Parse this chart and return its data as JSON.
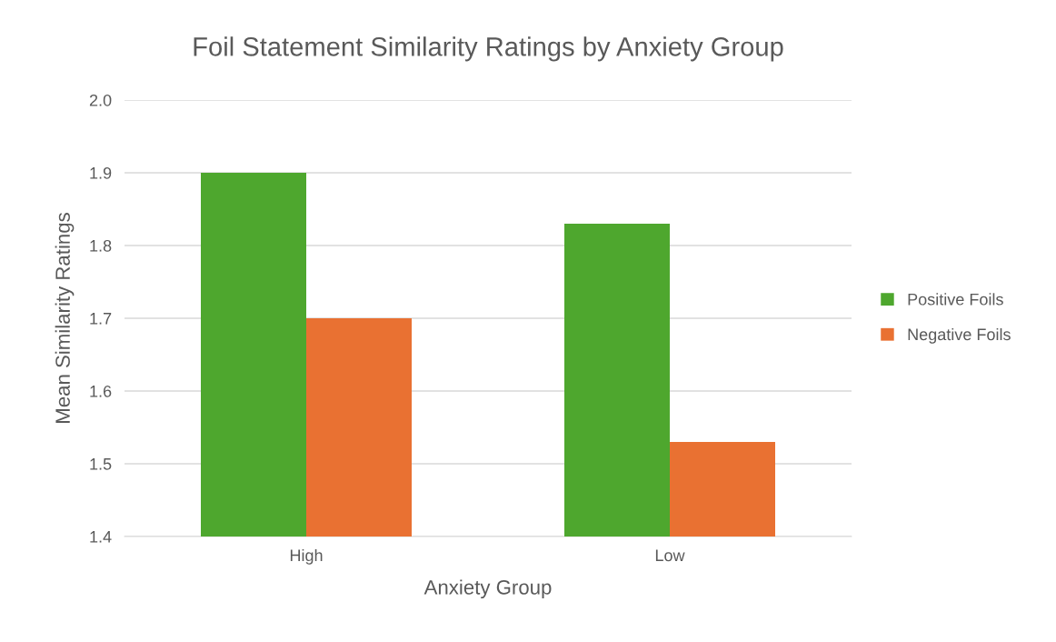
{
  "chart_data": {
    "type": "bar",
    "title": "Foil Statement Similarity Ratings by Anxiety Group",
    "xlabel": "Anxiety Group",
    "ylabel": "Mean Similarity Ratings",
    "categories": [
      "High",
      "Low"
    ],
    "series": [
      {
        "name": "Positive Foils",
        "color": "#4ea72e",
        "values": [
          1.9,
          1.83
        ]
      },
      {
        "name": "Negative Foils",
        "color": "#e97132",
        "values": [
          1.7,
          1.53
        ]
      }
    ],
    "ylim": [
      1.4,
      2.0
    ],
    "yticks": [
      {
        "value": 1.4,
        "label": "1.4"
      },
      {
        "value": 1.5,
        "label": "1.5"
      },
      {
        "value": 1.6,
        "label": "1.6"
      },
      {
        "value": 1.7,
        "label": "1.7"
      },
      {
        "value": 1.8,
        "label": "1.8"
      },
      {
        "value": 1.9,
        "label": "1.9"
      },
      {
        "value": 2.0,
        "label": "2.0"
      }
    ],
    "grid": "y",
    "legend": "right"
  }
}
